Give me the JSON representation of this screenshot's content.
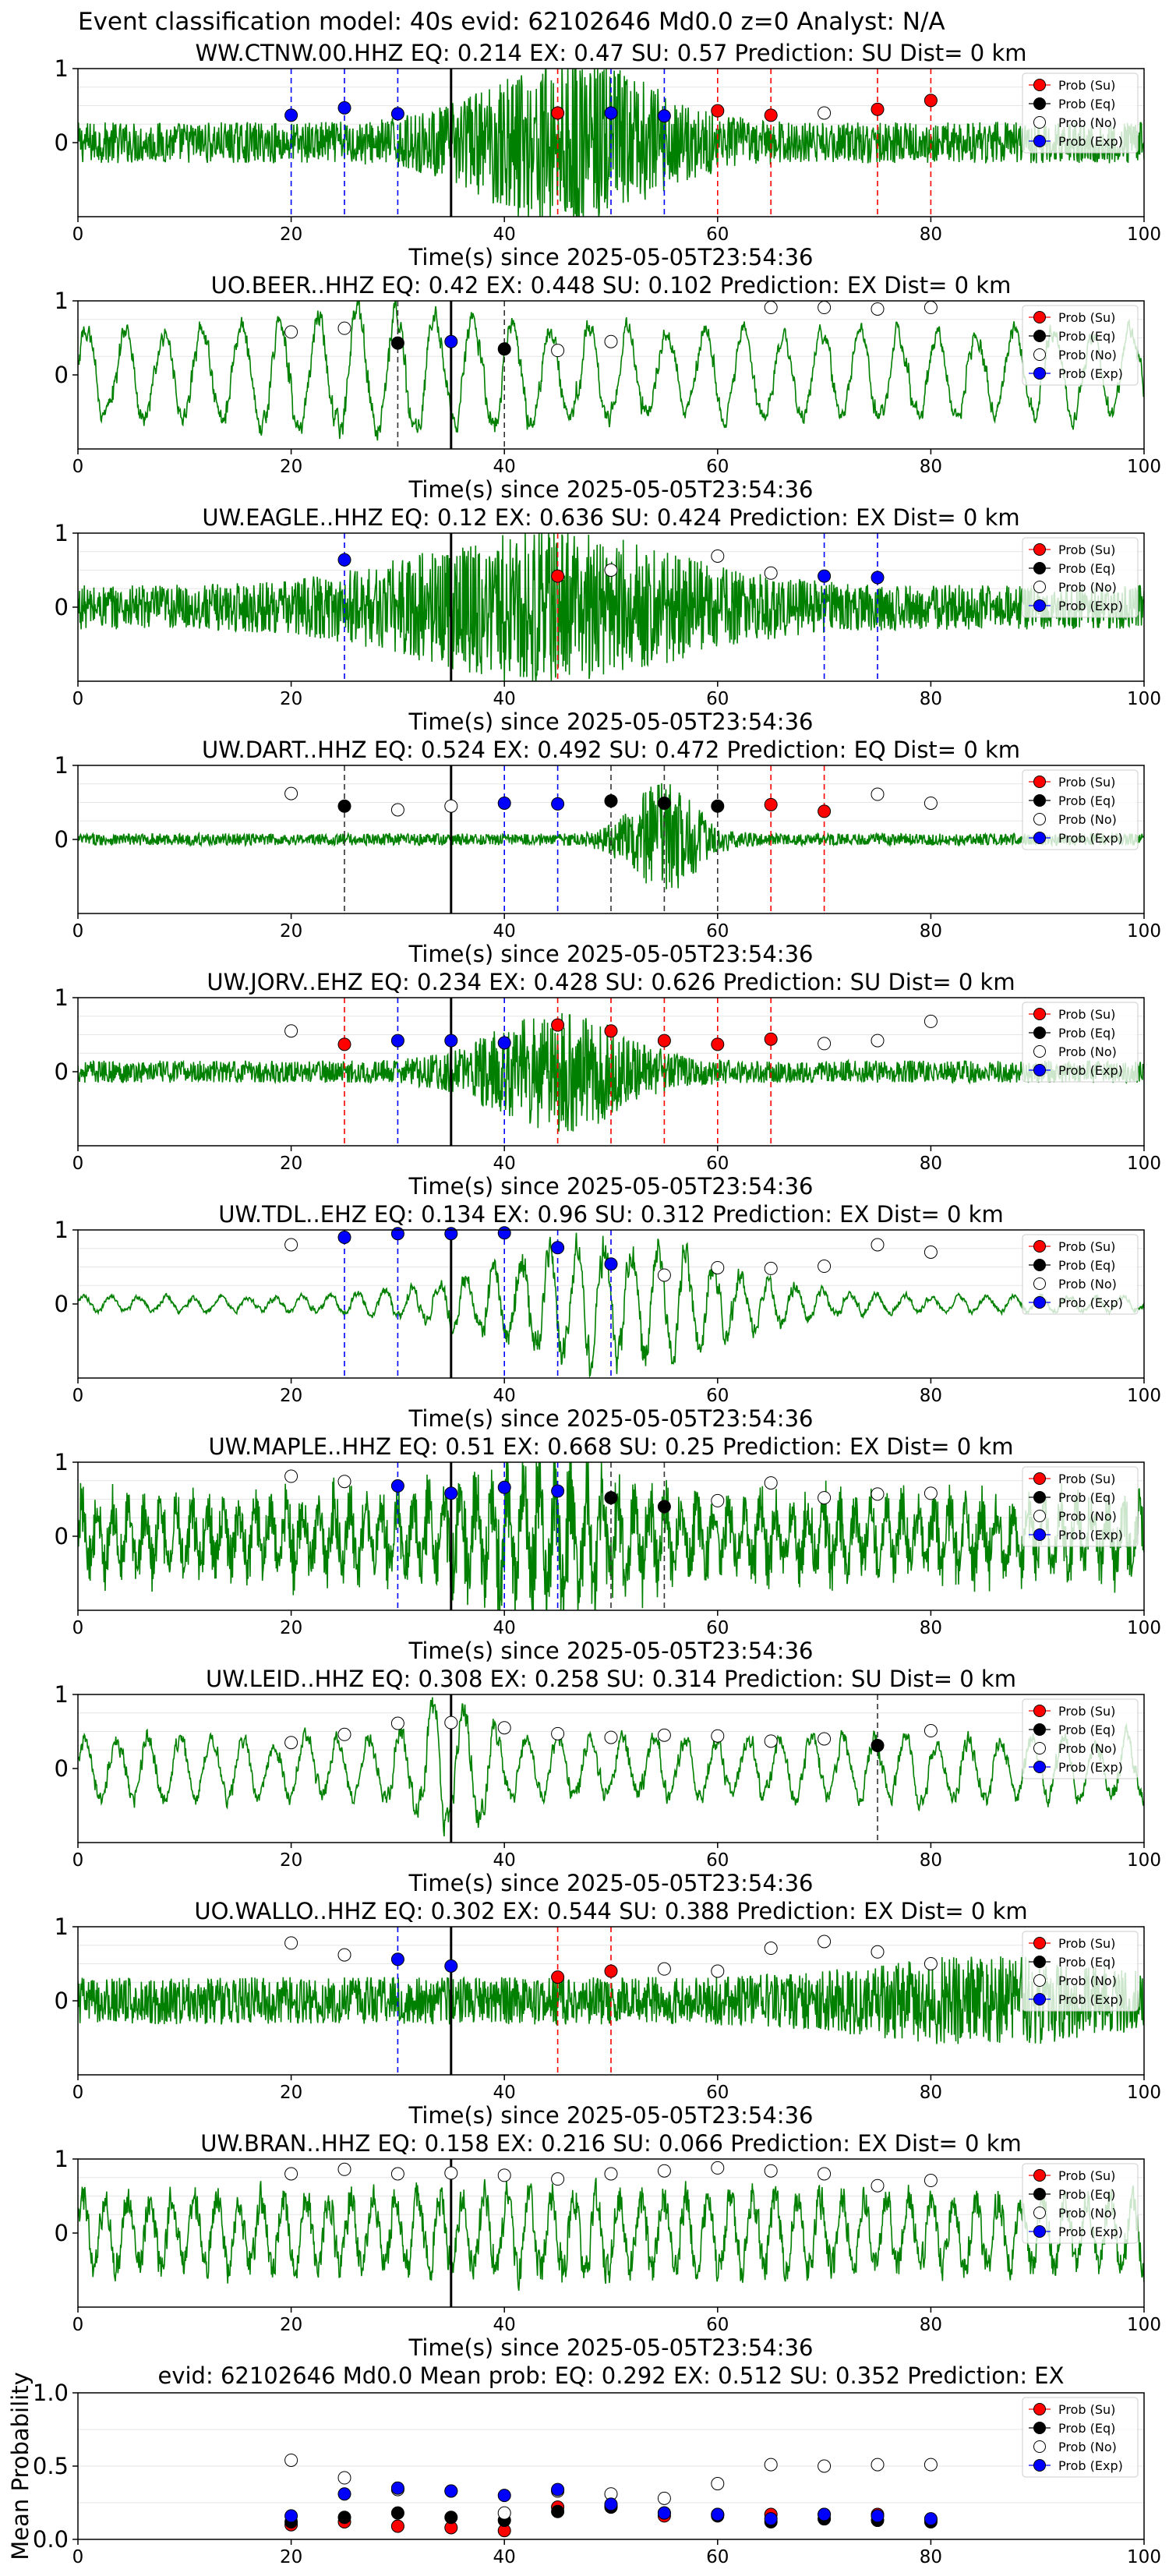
{
  "figure": {
    "suptitle": "Event classification model: 40s evid: 62102646 Md0.0 z=0 Analyst: N/A",
    "xlabel": "Time(s) since 2025-05-05T23:54:36",
    "event_marker_time": 35,
    "colors": {
      "waveform": "#008000",
      "su": "#ff0000",
      "eq": "#000000",
      "no": "#ffffff",
      "exp": "#0000ff",
      "event_line": "#000000"
    }
  },
  "legend": {
    "su": "Prob (Su)",
    "eq": "Prob (Eq)",
    "no": "Prob (No)",
    "exp": "Prob (Exp)"
  },
  "panels": [
    {
      "title": "WW.CTNW.00.HHZ   EQ: 0.214  EX: 0.47  SU: 0.57   Prediction: SU    Dist= 0 km",
      "noise": 0.28,
      "burst_center": 46,
      "burst_amp": 0.9,
      "burst_width": 10,
      "smooth": 1,
      "points": [
        {
          "t": 20,
          "p": 0.37,
          "c": "exp"
        },
        {
          "t": 25,
          "p": 0.47,
          "c": "exp"
        },
        {
          "t": 30,
          "p": 0.39,
          "c": "exp"
        },
        {
          "t": 45,
          "p": 0.4,
          "c": "su"
        },
        {
          "t": 50,
          "p": 0.4,
          "c": "exp"
        },
        {
          "t": 55,
          "p": 0.36,
          "c": "exp"
        },
        {
          "t": 60,
          "p": 0.43,
          "c": "su"
        },
        {
          "t": 65,
          "p": 0.37,
          "c": "su"
        },
        {
          "t": 70,
          "p": 0.4,
          "c": "no"
        },
        {
          "t": 75,
          "p": 0.45,
          "c": "su"
        },
        {
          "t": 80,
          "p": 0.57,
          "c": "su"
        }
      ]
    },
    {
      "title": "UO.BEER..HHZ   EQ: 0.42  EX: 0.448  SU: 0.102   Prediction: EX    Dist= 0 km",
      "noise": 0.7,
      "burst_center": 28,
      "burst_amp": 0.3,
      "burst_width": 15,
      "smooth": 12,
      "points": [
        {
          "t": 20,
          "p": 0.58,
          "c": "no"
        },
        {
          "t": 25,
          "p": 0.63,
          "c": "no"
        },
        {
          "t": 30,
          "p": 0.43,
          "c": "eq"
        },
        {
          "t": 35,
          "p": 0.45,
          "c": "exp"
        },
        {
          "t": 40,
          "p": 0.35,
          "c": "eq"
        },
        {
          "t": 45,
          "p": 0.33,
          "c": "no"
        },
        {
          "t": 50,
          "p": 0.45,
          "c": "no"
        },
        {
          "t": 65,
          "p": 0.91,
          "c": "no"
        },
        {
          "t": 70,
          "p": 0.91,
          "c": "no"
        },
        {
          "t": 75,
          "p": 0.89,
          "c": "no"
        },
        {
          "t": 80,
          "p": 0.91,
          "c": "no"
        }
      ]
    },
    {
      "title": "UW.EAGLE..HHZ   EQ: 0.12  EX: 0.636  SU: 0.424   Prediction: EX    Dist= 0 km",
      "noise": 0.3,
      "burst_center": 44,
      "burst_amp": 0.75,
      "burst_width": 16,
      "smooth": 1,
      "points": [
        {
          "t": 25,
          "p": 0.64,
          "c": "exp"
        },
        {
          "t": 45,
          "p": 0.42,
          "c": "su"
        },
        {
          "t": 50,
          "p": 0.5,
          "c": "no"
        },
        {
          "t": 60,
          "p": 0.69,
          "c": "no"
        },
        {
          "t": 65,
          "p": 0.46,
          "c": "no"
        },
        {
          "t": 70,
          "p": 0.42,
          "c": "exp"
        },
        {
          "t": 75,
          "p": 0.4,
          "c": "exp"
        }
      ]
    },
    {
      "title": "UW.DART..HHZ   EQ: 0.524  EX: 0.492  SU: 0.472   Prediction: EQ    Dist= 0 km",
      "noise": 0.08,
      "burst_center": 55,
      "burst_amp": 0.7,
      "burst_width": 4,
      "smooth": 1,
      "points": [
        {
          "t": 20,
          "p": 0.62,
          "c": "no"
        },
        {
          "t": 25,
          "p": 0.45,
          "c": "eq"
        },
        {
          "t": 30,
          "p": 0.4,
          "c": "no"
        },
        {
          "t": 35,
          "p": 0.45,
          "c": "no"
        },
        {
          "t": 40,
          "p": 0.49,
          "c": "exp"
        },
        {
          "t": 45,
          "p": 0.48,
          "c": "exp"
        },
        {
          "t": 50,
          "p": 0.52,
          "c": "eq"
        },
        {
          "t": 55,
          "p": 0.49,
          "c": "eq"
        },
        {
          "t": 60,
          "p": 0.45,
          "c": "eq"
        },
        {
          "t": 65,
          "p": 0.47,
          "c": "su"
        },
        {
          "t": 70,
          "p": 0.38,
          "c": "su"
        },
        {
          "t": 75,
          "p": 0.61,
          "c": "no"
        },
        {
          "t": 80,
          "p": 0.49,
          "c": "no"
        }
      ]
    },
    {
      "title": "UW.JORV..EHZ   EQ: 0.234  EX: 0.428  SU: 0.626   Prediction: SU    Dist= 0 km",
      "noise": 0.15,
      "burst_center": 45,
      "burst_amp": 0.7,
      "burst_width": 8,
      "smooth": 1,
      "points": [
        {
          "t": 20,
          "p": 0.55,
          "c": "no"
        },
        {
          "t": 25,
          "p": 0.37,
          "c": "su"
        },
        {
          "t": 30,
          "p": 0.42,
          "c": "exp"
        },
        {
          "t": 35,
          "p": 0.42,
          "c": "exp"
        },
        {
          "t": 40,
          "p": 0.39,
          "c": "exp"
        },
        {
          "t": 45,
          "p": 0.63,
          "c": "su"
        },
        {
          "t": 50,
          "p": 0.55,
          "c": "su"
        },
        {
          "t": 55,
          "p": 0.42,
          "c": "su"
        },
        {
          "t": 60,
          "p": 0.37,
          "c": "su"
        },
        {
          "t": 65,
          "p": 0.44,
          "c": "su"
        },
        {
          "t": 70,
          "p": 0.38,
          "c": "no"
        },
        {
          "t": 75,
          "p": 0.42,
          "c": "no"
        },
        {
          "t": 80,
          "p": 0.68,
          "c": "no"
        }
      ]
    },
    {
      "title": "UW.TDL..EHZ   EQ: 0.134  EX: 0.96  SU: 0.312   Prediction: EX    Dist= 0 km",
      "noise": 0.12,
      "burst_center": 50,
      "burst_amp": 0.8,
      "burst_width": 14,
      "smooth": 6,
      "points": [
        {
          "t": 20,
          "p": 0.8,
          "c": "no"
        },
        {
          "t": 25,
          "p": 0.9,
          "c": "exp"
        },
        {
          "t": 30,
          "p": 0.95,
          "c": "exp"
        },
        {
          "t": 35,
          "p": 0.95,
          "c": "exp"
        },
        {
          "t": 40,
          "p": 0.96,
          "c": "exp"
        },
        {
          "t": 45,
          "p": 0.76,
          "c": "exp"
        },
        {
          "t": 50,
          "p": 0.54,
          "c": "exp"
        },
        {
          "t": 55,
          "p": 0.39,
          "c": "no"
        },
        {
          "t": 60,
          "p": 0.49,
          "c": "no"
        },
        {
          "t": 65,
          "p": 0.48,
          "c": "no"
        },
        {
          "t": 70,
          "p": 0.51,
          "c": "no"
        },
        {
          "t": 75,
          "p": 0.8,
          "c": "no"
        },
        {
          "t": 80,
          "p": 0.7,
          "c": "no"
        }
      ]
    },
    {
      "title": "UW.MAPLE..HHZ   EQ: 0.51  EX: 0.668  SU: 0.25   Prediction: EX    Dist= 0 km",
      "noise": 0.45,
      "burst_center": 44,
      "burst_amp": 0.4,
      "burst_width": 8,
      "smooth": 2,
      "points": [
        {
          "t": 20,
          "p": 0.81,
          "c": "no"
        },
        {
          "t": 25,
          "p": 0.74,
          "c": "no"
        },
        {
          "t": 30,
          "p": 0.68,
          "c": "exp"
        },
        {
          "t": 35,
          "p": 0.58,
          "c": "exp"
        },
        {
          "t": 40,
          "p": 0.66,
          "c": "exp"
        },
        {
          "t": 45,
          "p": 0.61,
          "c": "exp"
        },
        {
          "t": 50,
          "p": 0.52,
          "c": "eq"
        },
        {
          "t": 55,
          "p": 0.4,
          "c": "eq"
        },
        {
          "t": 60,
          "p": 0.48,
          "c": "no"
        },
        {
          "t": 65,
          "p": 0.72,
          "c": "no"
        },
        {
          "t": 70,
          "p": 0.52,
          "c": "no"
        },
        {
          "t": 75,
          "p": 0.57,
          "c": "no"
        },
        {
          "t": 80,
          "p": 0.58,
          "c": "no"
        }
      ]
    },
    {
      "title": "UW.LEID..HHZ   EQ: 0.308  EX: 0.258  SU: 0.314   Prediction: SU    Dist= 0 km",
      "noise": 0.5,
      "burst_center": 35,
      "burst_amp": 0.5,
      "burst_width": 4,
      "smooth": 8,
      "points": [
        {
          "t": 20,
          "p": 0.35,
          "c": "no"
        },
        {
          "t": 25,
          "p": 0.46,
          "c": "no"
        },
        {
          "t": 30,
          "p": 0.61,
          "c": "no"
        },
        {
          "t": 35,
          "p": 0.62,
          "c": "no"
        },
        {
          "t": 40,
          "p": 0.55,
          "c": "no"
        },
        {
          "t": 45,
          "p": 0.47,
          "c": "no"
        },
        {
          "t": 50,
          "p": 0.42,
          "c": "no"
        },
        {
          "t": 55,
          "p": 0.45,
          "c": "no"
        },
        {
          "t": 60,
          "p": 0.44,
          "c": "no"
        },
        {
          "t": 65,
          "p": 0.37,
          "c": "no"
        },
        {
          "t": 70,
          "p": 0.4,
          "c": "no"
        },
        {
          "t": 75,
          "p": 0.31,
          "c": "eq"
        },
        {
          "t": 80,
          "p": 0.51,
          "c": "no"
        }
      ]
    },
    {
      "title": "UO.WALLO..HHZ   EQ: 0.302  EX: 0.544  SU: 0.388   Prediction: EX    Dist= 0 km",
      "noise": 0.32,
      "burst_center": 85,
      "burst_amp": 0.3,
      "burst_width": 14,
      "smooth": 1,
      "points": [
        {
          "t": 20,
          "p": 0.78,
          "c": "no"
        },
        {
          "t": 25,
          "p": 0.62,
          "c": "no"
        },
        {
          "t": 30,
          "p": 0.56,
          "c": "exp"
        },
        {
          "t": 35,
          "p": 0.47,
          "c": "exp"
        },
        {
          "t": 45,
          "p": 0.32,
          "c": "su"
        },
        {
          "t": 50,
          "p": 0.4,
          "c": "su"
        },
        {
          "t": 55,
          "p": 0.43,
          "c": "no"
        },
        {
          "t": 60,
          "p": 0.4,
          "c": "no"
        },
        {
          "t": 65,
          "p": 0.71,
          "c": "no"
        },
        {
          "t": 70,
          "p": 0.8,
          "c": "no"
        },
        {
          "t": 75,
          "p": 0.66,
          "c": "no"
        },
        {
          "t": 80,
          "p": 0.5,
          "c": "no"
        }
      ]
    },
    {
      "title": "UW.BRAN..HHZ   EQ: 0.158  EX: 0.216  SU: 0.066   Prediction: EX    Dist= 0 km",
      "noise": 0.55,
      "burst_center": 50,
      "burst_amp": 0.1,
      "burst_width": 20,
      "smooth": 4,
      "points": [
        {
          "t": 20,
          "p": 0.8,
          "c": "no"
        },
        {
          "t": 25,
          "p": 0.86,
          "c": "no"
        },
        {
          "t": 30,
          "p": 0.8,
          "c": "no"
        },
        {
          "t": 35,
          "p": 0.81,
          "c": "no"
        },
        {
          "t": 40,
          "p": 0.78,
          "c": "no"
        },
        {
          "t": 45,
          "p": 0.73,
          "c": "no"
        },
        {
          "t": 50,
          "p": 0.8,
          "c": "no"
        },
        {
          "t": 55,
          "p": 0.84,
          "c": "no"
        },
        {
          "t": 60,
          "p": 0.88,
          "c": "no"
        },
        {
          "t": 65,
          "p": 0.84,
          "c": "no"
        },
        {
          "t": 70,
          "p": 0.8,
          "c": "no"
        },
        {
          "t": 75,
          "p": 0.64,
          "c": "no"
        },
        {
          "t": 80,
          "p": 0.71,
          "c": "no"
        }
      ]
    }
  ],
  "mean_panel": {
    "title": "evid: 62102646  Md0.0   Mean prob:   EQ: 0.292  EX: 0.512  SU: 0.352   Prediction: EX",
    "ylabel": "Mean Probability"
  },
  "chart_data": [
    {
      "type": "scatter",
      "title": "evid: 62102646  Md0.0   Mean prob:   EQ: 0.292  EX: 0.512  SU: 0.352   Prediction: EX",
      "xlabel": "",
      "ylabel": "Mean Probability",
      "xlim": [
        0,
        100
      ],
      "ylim": [
        0,
        1
      ],
      "xticks": [
        0,
        20,
        40,
        60,
        80,
        100
      ],
      "yticks": [
        0.0,
        0.5,
        1.0
      ],
      "x": [
        20,
        25,
        30,
        35,
        40,
        45,
        50,
        55,
        60,
        65,
        70,
        75,
        80
      ],
      "series": [
        {
          "name": "Prob (Su)",
          "key": "su",
          "values": [
            0.1,
            0.12,
            0.09,
            0.08,
            0.06,
            0.22,
            0.23,
            0.16,
            0.17,
            0.17,
            0.17,
            0.17,
            0.13
          ]
        },
        {
          "name": "Prob (Eq)",
          "key": "eq",
          "values": [
            0.12,
            0.15,
            0.18,
            0.15,
            0.13,
            0.19,
            0.22,
            0.18,
            0.16,
            0.12,
            0.14,
            0.13,
            0.12
          ]
        },
        {
          "name": "Prob (No)",
          "key": "no",
          "values": [
            0.54,
            0.42,
            0.34,
            0.33,
            0.18,
            0.33,
            0.31,
            0.28,
            0.38,
            0.51,
            0.5,
            0.51,
            0.51
          ]
        },
        {
          "name": "Prob (Exp)",
          "key": "exp",
          "values": [
            0.16,
            0.31,
            0.35,
            0.33,
            0.3,
            0.34,
            0.24,
            0.18,
            0.17,
            0.14,
            0.17,
            0.16,
            0.14
          ]
        }
      ],
      "legend": "top-right",
      "grid": true
    },
    {
      "type": "line",
      "note_series": "Waveform panels 1-10: green seismogram traces (normalized amplitude, x in seconds 0-100), with per-station probability markers listed in panels[].points",
      "xlim": [
        0,
        100
      ],
      "ylim": [
        -1,
        1
      ],
      "xticks": [
        0,
        20,
        40,
        60,
        80,
        100
      ],
      "yticks": [
        0,
        1
      ]
    }
  ]
}
